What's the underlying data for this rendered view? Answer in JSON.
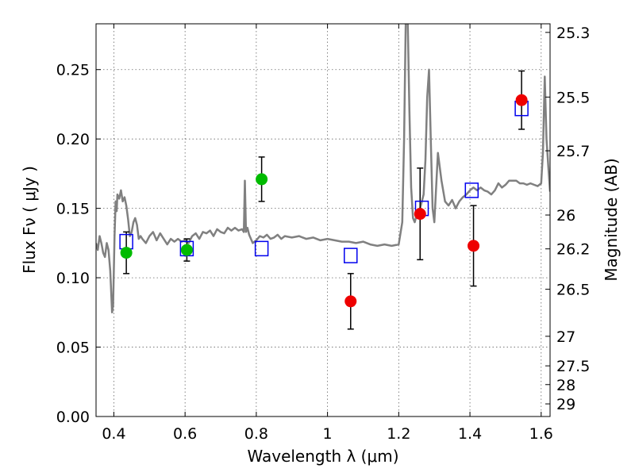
{
  "chart_data": {
    "type": "scatter",
    "xlabel": "Wavelength  λ (μm)",
    "ylabel": "Flux  Fν  ( μJy )",
    "y2label": "Magnitude (AB)",
    "xlim": [
      0.35,
      1.625
    ],
    "ylim": [
      0.0,
      0.283
    ],
    "grid": true,
    "x_ticks": [
      0.4,
      0.6,
      0.8,
      1.0,
      1.2,
      1.4,
      1.6
    ],
    "x_tick_labels": [
      "0.4",
      "0.6",
      "0.8",
      "1",
      "1.2",
      "1.4",
      "1.6"
    ],
    "y_ticks": [
      0.0,
      0.05,
      0.1,
      0.15,
      0.2,
      0.25
    ],
    "y_tick_labels": [
      "0.00",
      "0.05",
      "0.10",
      "0.15",
      "0.20",
      "0.25"
    ],
    "mag_ticks": [
      {
        "label": "25.3",
        "flux": 0.2768
      },
      {
        "label": "25.5",
        "flux": 0.2302
      },
      {
        "label": "25.7",
        "flux": 0.1915
      },
      {
        "label": "26",
        "flux": 0.1452
      },
      {
        "label": "26.2",
        "flux": 0.1208
      },
      {
        "label": "26.5",
        "flux": 0.0917
      },
      {
        "label": "27",
        "flux": 0.0578
      },
      {
        "label": "27.5",
        "flux": 0.0365
      },
      {
        "label": "28",
        "flux": 0.023
      },
      {
        "label": "29",
        "flux": 0.0091
      }
    ],
    "colors": {
      "model": "#808080",
      "green": "#00bb00",
      "red": "#ee0000",
      "model_points": "#0000ee",
      "errorbar": "#000000"
    },
    "model_spectrum": {
      "x": [
        0.35,
        0.355,
        0.36,
        0.365,
        0.37,
        0.375,
        0.38,
        0.385,
        0.39,
        0.395,
        0.398,
        0.402,
        0.405,
        0.408,
        0.41,
        0.415,
        0.42,
        0.425,
        0.43,
        0.435,
        0.44,
        0.445,
        0.45,
        0.455,
        0.46,
        0.465,
        0.47,
        0.475,
        0.48,
        0.49,
        0.5,
        0.51,
        0.52,
        0.53,
        0.54,
        0.55,
        0.56,
        0.57,
        0.58,
        0.59,
        0.6,
        0.61,
        0.62,
        0.63,
        0.64,
        0.65,
        0.66,
        0.67,
        0.68,
        0.69,
        0.7,
        0.71,
        0.72,
        0.73,
        0.74,
        0.75,
        0.76,
        0.765,
        0.768,
        0.771,
        0.775,
        0.78,
        0.79,
        0.8,
        0.81,
        0.82,
        0.83,
        0.84,
        0.85,
        0.86,
        0.87,
        0.88,
        0.9,
        0.92,
        0.94,
        0.96,
        0.98,
        1.0,
        1.02,
        1.04,
        1.06,
        1.08,
        1.1,
        1.12,
        1.14,
        1.16,
        1.18,
        1.2,
        1.21,
        1.215,
        1.22,
        1.225,
        1.23,
        1.235,
        1.24,
        1.245,
        1.25,
        1.26,
        1.27,
        1.275,
        1.28,
        1.285,
        1.29,
        1.295,
        1.3,
        1.31,
        1.32,
        1.33,
        1.34,
        1.35,
        1.36,
        1.37,
        1.38,
        1.39,
        1.4,
        1.41,
        1.42,
        1.43,
        1.44,
        1.45,
        1.46,
        1.47,
        1.48,
        1.49,
        1.5,
        1.51,
        1.52,
        1.53,
        1.54,
        1.55,
        1.56,
        1.57,
        1.58,
        1.59,
        1.6,
        1.605,
        1.61,
        1.615,
        1.62,
        1.625
      ],
      "y": [
        0.125,
        0.12,
        0.13,
        0.125,
        0.118,
        0.115,
        0.125,
        0.12,
        0.105,
        0.075,
        0.08,
        0.13,
        0.155,
        0.148,
        0.16,
        0.157,
        0.163,
        0.155,
        0.158,
        0.152,
        0.142,
        0.13,
        0.133,
        0.14,
        0.143,
        0.138,
        0.128,
        0.13,
        0.128,
        0.125,
        0.13,
        0.133,
        0.127,
        0.132,
        0.128,
        0.124,
        0.128,
        0.126,
        0.128,
        0.126,
        0.127,
        0.125,
        0.13,
        0.132,
        0.128,
        0.133,
        0.132,
        0.134,
        0.13,
        0.135,
        0.133,
        0.132,
        0.136,
        0.134,
        0.136,
        0.134,
        0.135,
        0.133,
        0.17,
        0.133,
        0.136,
        0.131,
        0.125,
        0.127,
        0.13,
        0.129,
        0.131,
        0.128,
        0.129,
        0.131,
        0.128,
        0.13,
        0.129,
        0.13,
        0.128,
        0.129,
        0.127,
        0.128,
        0.127,
        0.126,
        0.126,
        0.125,
        0.126,
        0.124,
        0.123,
        0.124,
        0.123,
        0.124,
        0.14,
        0.2,
        0.29,
        0.29,
        0.22,
        0.165,
        0.143,
        0.14,
        0.145,
        0.15,
        0.16,
        0.185,
        0.23,
        0.25,
        0.2,
        0.15,
        0.14,
        0.19,
        0.17,
        0.155,
        0.152,
        0.156,
        0.15,
        0.155,
        0.158,
        0.16,
        0.163,
        0.165,
        0.163,
        0.165,
        0.163,
        0.162,
        0.16,
        0.163,
        0.168,
        0.165,
        0.167,
        0.17,
        0.17,
        0.17,
        0.168,
        0.168,
        0.167,
        0.168,
        0.167,
        0.166,
        0.168,
        0.19,
        0.245,
        0.2,
        0.18,
        0.162
      ]
    },
    "green_points": [
      {
        "x": 0.435,
        "y": 0.118,
        "err": 0.015
      },
      {
        "x": 0.605,
        "y": 0.12,
        "err": 0.008
      },
      {
        "x": 0.815,
        "y": 0.171,
        "err": 0.016
      }
    ],
    "red_points": [
      {
        "x": 1.065,
        "y": 0.083,
        "err": 0.02
      },
      {
        "x": 1.26,
        "y": 0.146,
        "err": 0.033
      },
      {
        "x": 1.41,
        "y": 0.123,
        "err": 0.029
      },
      {
        "x": 1.545,
        "y": 0.228,
        "err": 0.021
      }
    ],
    "model_points": [
      {
        "x": 0.435,
        "y": 0.126
      },
      {
        "x": 0.605,
        "y": 0.121
      },
      {
        "x": 0.815,
        "y": 0.121
      },
      {
        "x": 1.065,
        "y": 0.116
      },
      {
        "x": 1.265,
        "y": 0.15
      },
      {
        "x": 1.405,
        "y": 0.163
      },
      {
        "x": 1.545,
        "y": 0.222
      }
    ]
  }
}
